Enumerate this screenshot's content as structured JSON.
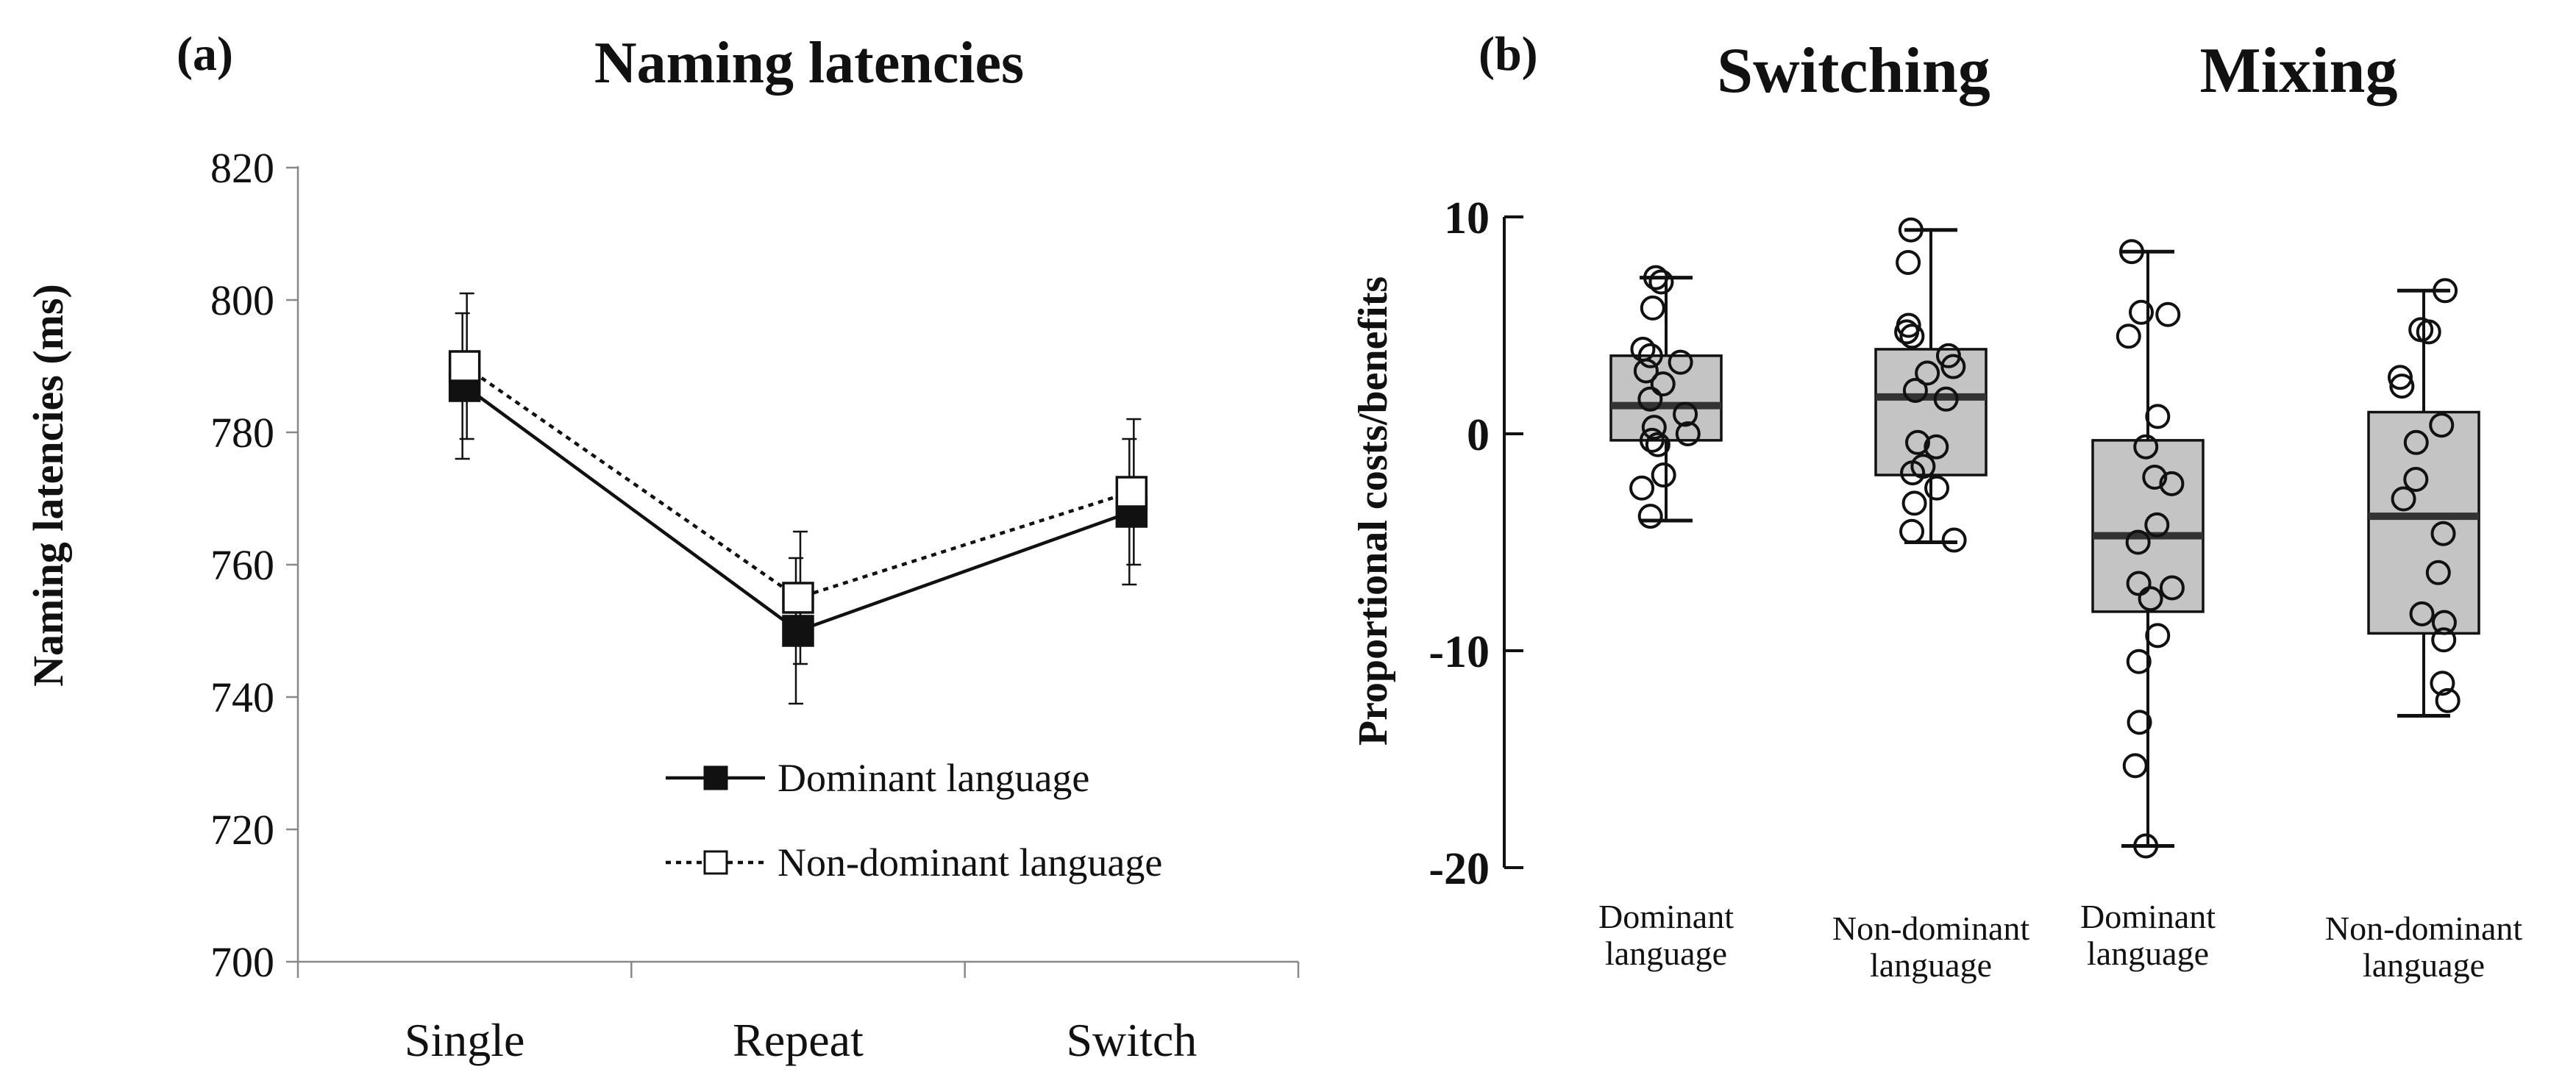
{
  "colors": {
    "ink": "#111111",
    "box_fill": "#c4c4c4",
    "background": "#ffffff"
  },
  "panel_a": {
    "letter": "(a)",
    "chart_data": {
      "type": "line",
      "title": "Naming latencies",
      "xlabel": "",
      "ylabel": "Naming latencies  (ms)",
      "categories": [
        "Single",
        "Repeat",
        "Switch"
      ],
      "ylim": [
        700,
        820
      ],
      "yticks": [
        700,
        720,
        740,
        760,
        780,
        800,
        820
      ],
      "series": [
        {
          "name": "Dominant language",
          "style": "solid",
          "marker": "filled-square",
          "values": [
            787,
            750,
            768
          ],
          "err": [
            11,
            11,
            11
          ]
        },
        {
          "name": "Non-dominant language",
          "style": "dotted",
          "marker": "open-square",
          "values": [
            790,
            755,
            771
          ],
          "err": [
            11,
            10,
            11
          ]
        }
      ],
      "legend_position": "bottom-right"
    }
  },
  "panel_b": {
    "letter": "(b)",
    "chart_data": {
      "type": "box",
      "ylabel": "Proportional costs/benefits",
      "ylim": [
        -20,
        10
      ],
      "yticks": [
        10,
        0,
        -10,
        -20
      ],
      "groups": [
        "Switching",
        "Mixing"
      ],
      "boxes": [
        {
          "group": "Switching",
          "label_lines": [
            "Dominant",
            "language"
          ],
          "min": -4,
          "q1": -0.3,
          "median": 1.3,
          "q3": 3.6,
          "max": 7.2,
          "points": [
            7.2,
            7.0,
            5.8,
            3.9,
            3.6,
            3.3,
            2.9,
            2.3,
            1.6,
            0.9,
            0.3,
            0.0,
            -0.3,
            -0.5,
            -1.9,
            -2.5,
            -3.8
          ]
        },
        {
          "group": "Switching",
          "label_lines": [
            "Non-dominant",
            "language"
          ],
          "min": -5,
          "q1": -1.9,
          "median": 1.7,
          "q3": 3.9,
          "max": 9.4,
          "points": [
            9.4,
            7.9,
            5.0,
            4.7,
            4.5,
            3.6,
            3.1,
            2.8,
            2.0,
            1.6,
            -0.4,
            -0.6,
            -1.5,
            -1.8,
            -2.5,
            -3.2,
            -4.5,
            -4.9
          ]
        },
        {
          "group": "Mixing",
          "label_lines": [
            "Dominant",
            "language"
          ],
          "min": -19,
          "q1": -8.2,
          "median": -4.7,
          "q3": -0.3,
          "max": 8.4,
          "points": [
            8.4,
            5.6,
            5.5,
            4.5,
            0.8,
            -0.6,
            -2.0,
            -2.3,
            -4.2,
            -5.0,
            -6.9,
            -7.1,
            -7.6,
            -9.3,
            -10.5,
            -13.3,
            -15.3,
            -19.0
          ]
        },
        {
          "group": "Mixing",
          "label_lines": [
            "Non-dominant",
            "language"
          ],
          "min": -13,
          "q1": -9.2,
          "median": -3.8,
          "q3": 1.0,
          "max": 6.6,
          "points": [
            6.6,
            4.8,
            4.7,
            2.6,
            2.2,
            0.4,
            -0.4,
            -2.1,
            -3.0,
            -4.6,
            -6.4,
            -8.3,
            -8.7,
            -9.5,
            -11.5,
            -12.3
          ]
        }
      ]
    }
  }
}
